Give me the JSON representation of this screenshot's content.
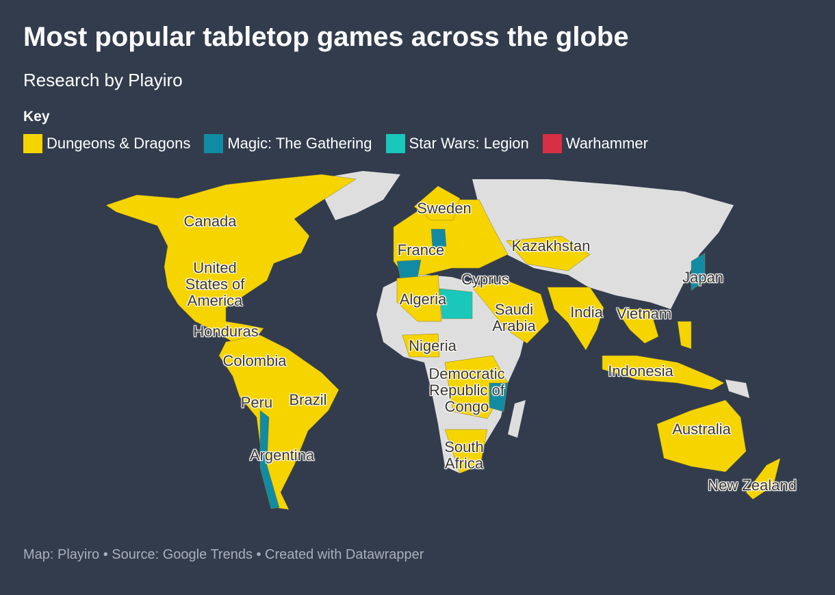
{
  "header": {
    "title": "Most popular tabletop games across the globe",
    "subtitle": "Research by Playiro"
  },
  "legend": {
    "title": "Key",
    "items": [
      {
        "label": "Dungeons & Dragons",
        "color": "#f6d400"
      },
      {
        "label": "Magic: The Gathering",
        "color": "#118ba3"
      },
      {
        "label": "Star Wars: Legion",
        "color": "#19c7bb"
      },
      {
        "label": "Warhammer",
        "color": "#d92f45"
      }
    ]
  },
  "map": {
    "labels": [
      "Canada",
      "United States of America",
      "Honduras",
      "Colombia",
      "Peru",
      "Brazil",
      "Argentina",
      "Sweden",
      "France",
      "Kazakhstan",
      "Cyprus",
      "Algeria",
      "Saudi Arabia",
      "Nigeria",
      "Democratic Republic of Congo",
      "South Africa",
      "India",
      "Vietnam",
      "Japan",
      "Indonesia",
      "Australia",
      "New Zealand"
    ]
  },
  "footer": {
    "text": "Map: Playiro • Source: Google Trends • Created with Datawrapper"
  }
}
